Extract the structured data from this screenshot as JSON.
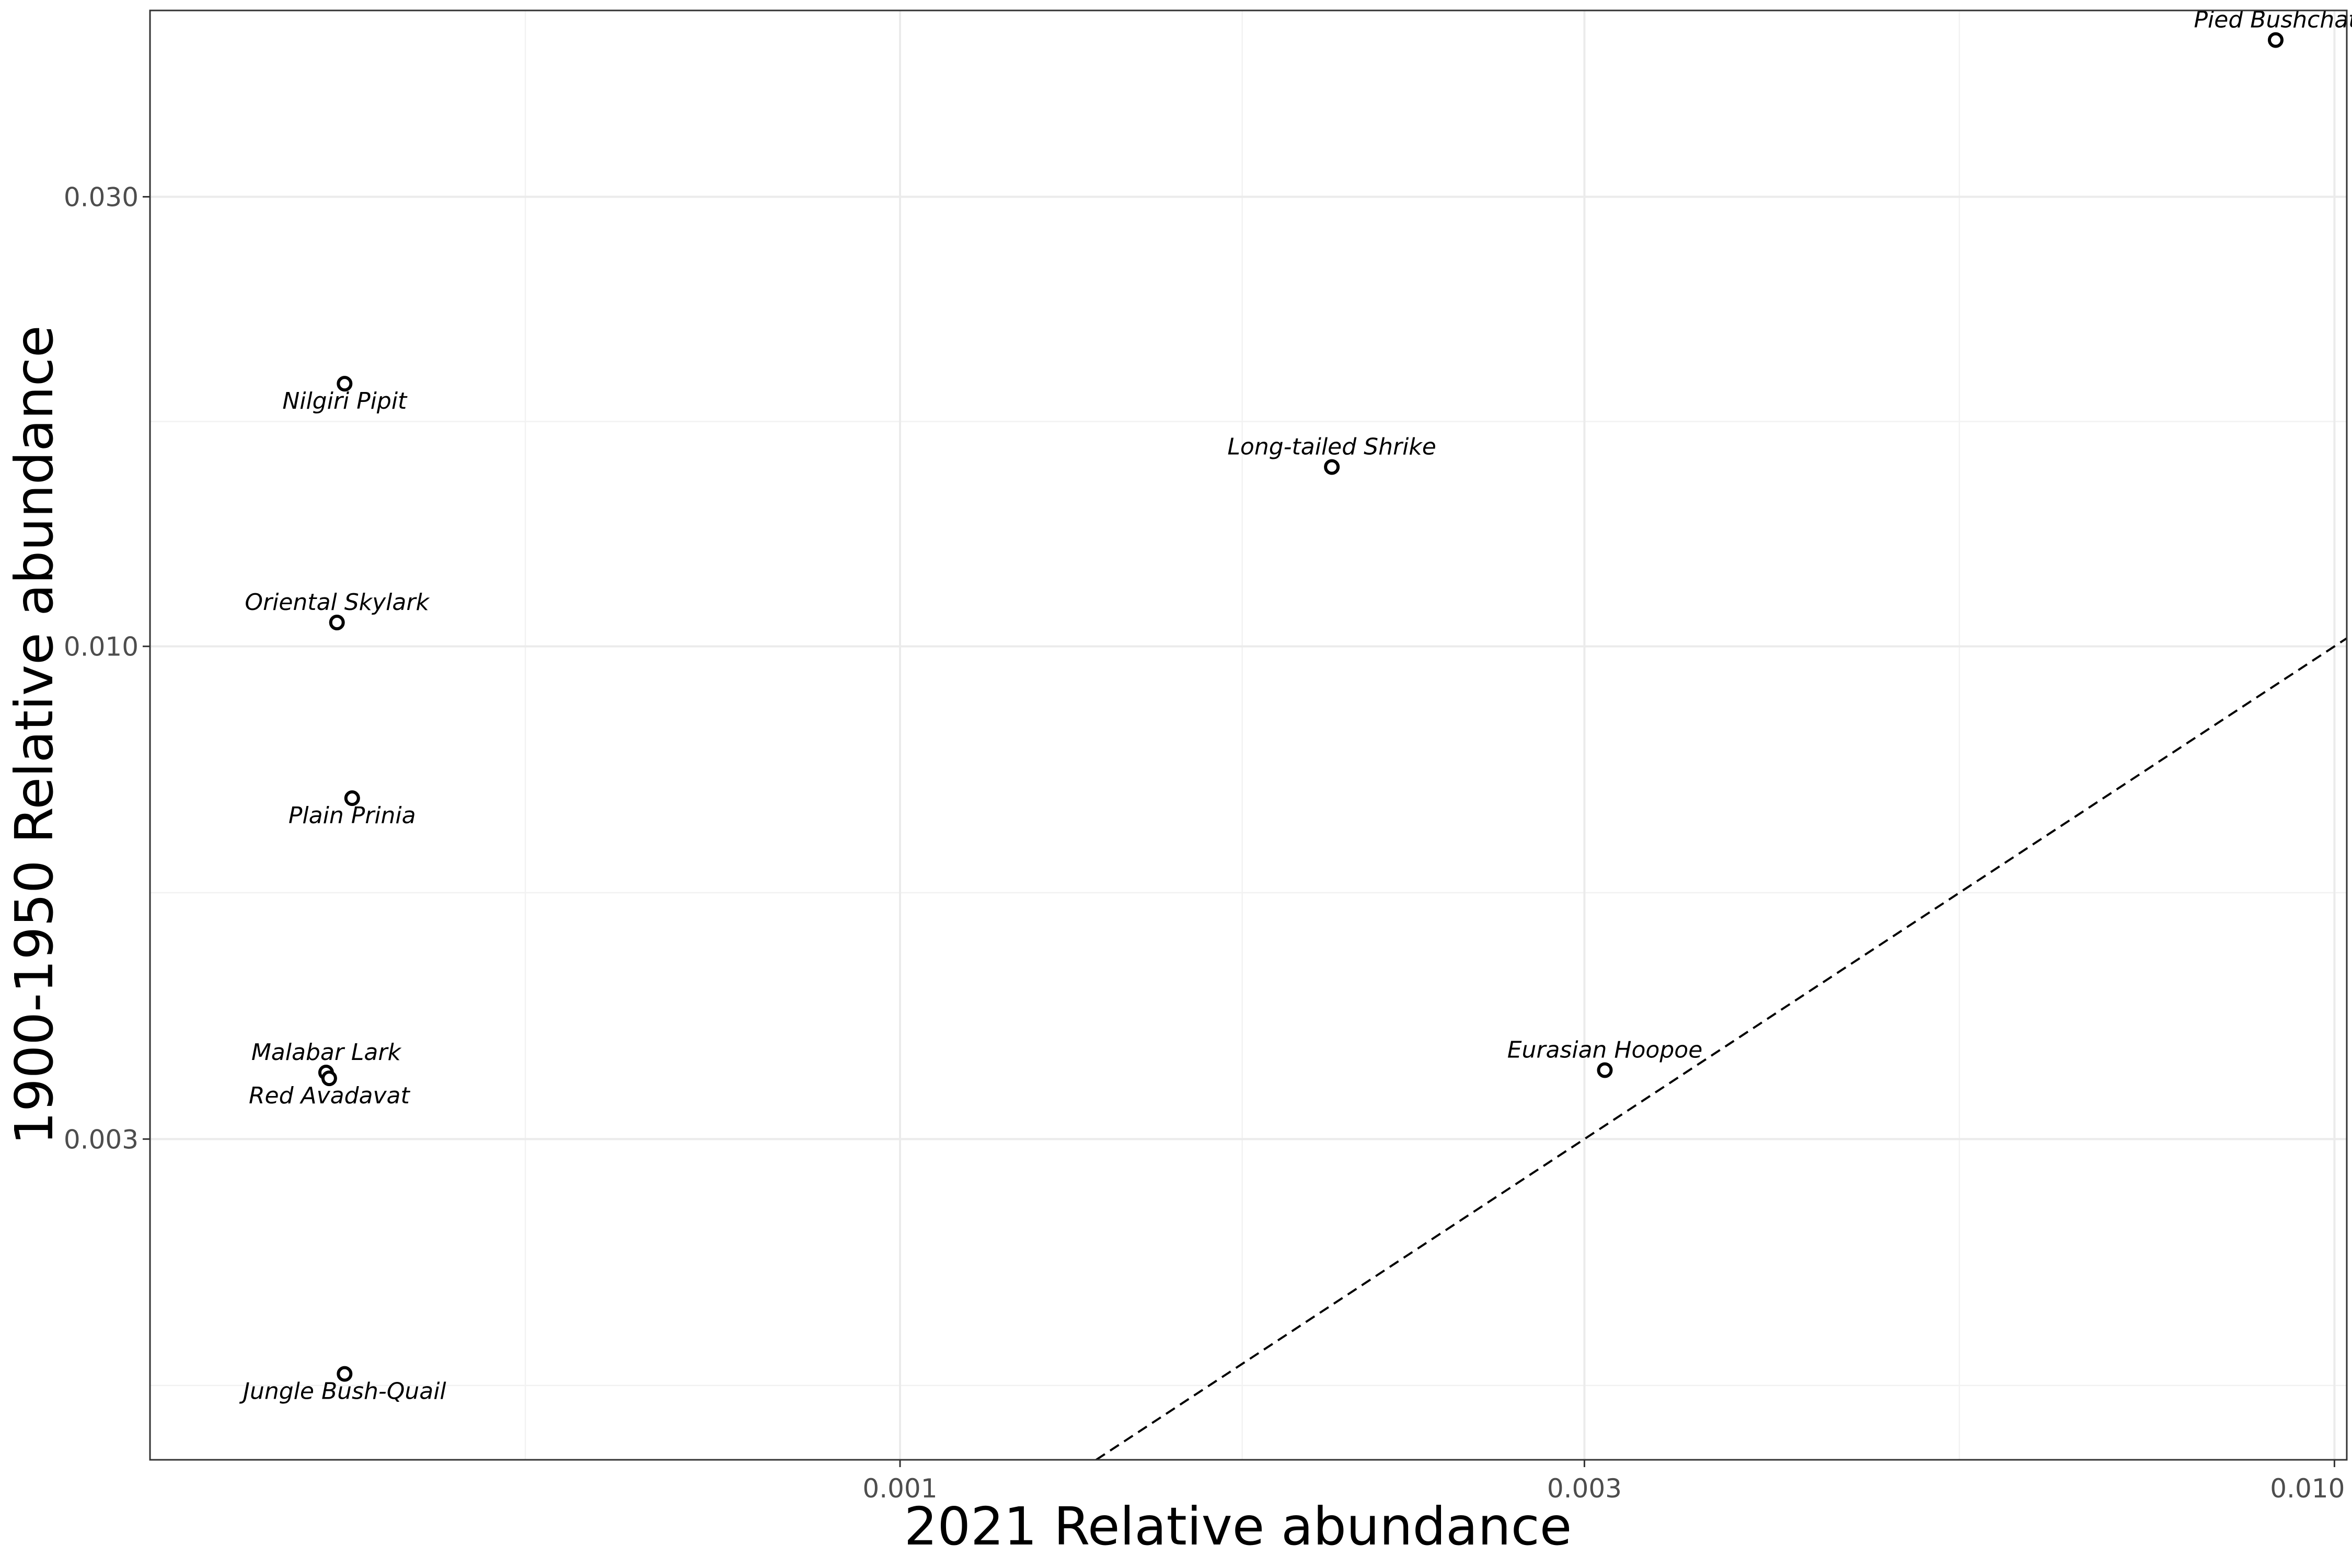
{
  "chart_data": {
    "type": "scatter",
    "title": "",
    "xlabel": "2021 Relative abundance",
    "ylabel": "1900-1950 Relative abundance",
    "x_scale": "log10",
    "y_scale": "log10",
    "xlim": [
      0.0003,
      0.0102
    ],
    "ylim": [
      0.00137,
      0.0473
    ],
    "x_ticks": [
      {
        "value": 0.001,
        "label": "0.001"
      },
      {
        "value": 0.003,
        "label": "0.003"
      },
      {
        "value": 0.01,
        "label": "0.010"
      }
    ],
    "y_ticks": [
      {
        "value": 0.003,
        "label": "0.003"
      },
      {
        "value": 0.01,
        "label": "0.010"
      },
      {
        "value": 0.03,
        "label": "0.030"
      }
    ],
    "x_minor_ticks": [
      0.000548,
      0.001732,
      0.005477
    ],
    "y_minor_ticks": [
      0.001643,
      0.005477,
      0.017321
    ],
    "grid": true,
    "reference_line": {
      "type": "identity",
      "style": "dashed",
      "description": "y = x"
    },
    "points": [
      {
        "label": "Pied Bushchat",
        "x": 0.0091,
        "y": 0.044,
        "label_pos": "above"
      },
      {
        "label": "Nilgiri Pipit",
        "x": 0.00041,
        "y": 0.019,
        "label_pos": "below"
      },
      {
        "label": "Long-tailed Shrike",
        "x": 0.002,
        "y": 0.0155,
        "label_pos": "above"
      },
      {
        "label": "Oriental Skylark",
        "x": 0.000405,
        "y": 0.0106,
        "label_pos": "above"
      },
      {
        "label": "Plain Prinia",
        "x": 0.000415,
        "y": 0.0069,
        "label_pos": "below"
      },
      {
        "label": "Malabar Lark",
        "x": 0.000398,
        "y": 0.00353,
        "label_pos": "above"
      },
      {
        "label": "Red Avadavat",
        "x": 0.0004,
        "y": 0.00348,
        "label_pos": "below"
      },
      {
        "label": "Eurasian Hoopoe",
        "x": 0.0031,
        "y": 0.00355,
        "label_pos": "above"
      },
      {
        "label": "Jungle Bush-Quail",
        "x": 0.00041,
        "y": 0.00169,
        "label_pos": "below"
      }
    ]
  }
}
